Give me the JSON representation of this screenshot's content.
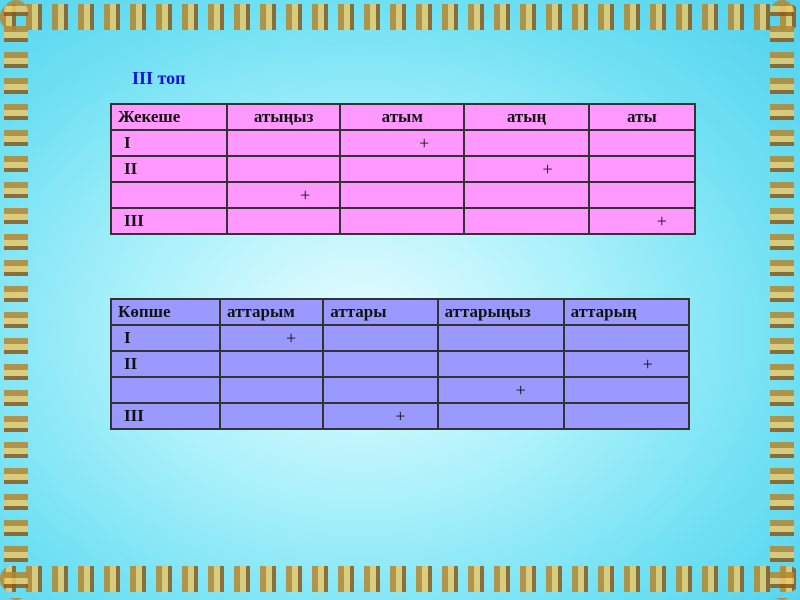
{
  "title": "III топ",
  "singular": {
    "headers": [
      "Жекеше",
      "атыңыз",
      "атым",
      "атың",
      "аты"
    ],
    "rows": [
      [
        "I",
        "",
        "+",
        "",
        ""
      ],
      [
        "II",
        "",
        "",
        "+",
        ""
      ],
      [
        "",
        "+",
        "",
        "",
        ""
      ],
      [
        "III",
        "",
        "",
        "",
        "+"
      ]
    ]
  },
  "plural": {
    "headers": [
      "Көпше",
      "аттарым",
      "аттары",
      "аттарыңыз",
      "аттарың"
    ],
    "rows": [
      [
        "I",
        "+",
        "",
        "",
        ""
      ],
      [
        "II",
        "",
        "",
        "",
        "+"
      ],
      [
        "",
        "",
        "",
        "+",
        ""
      ],
      [
        "III",
        "",
        "+",
        "",
        ""
      ]
    ]
  },
  "colors": {
    "singular_fill": "#ff99ff",
    "plural_fill": "#9999ff",
    "title": "#1010e0"
  }
}
